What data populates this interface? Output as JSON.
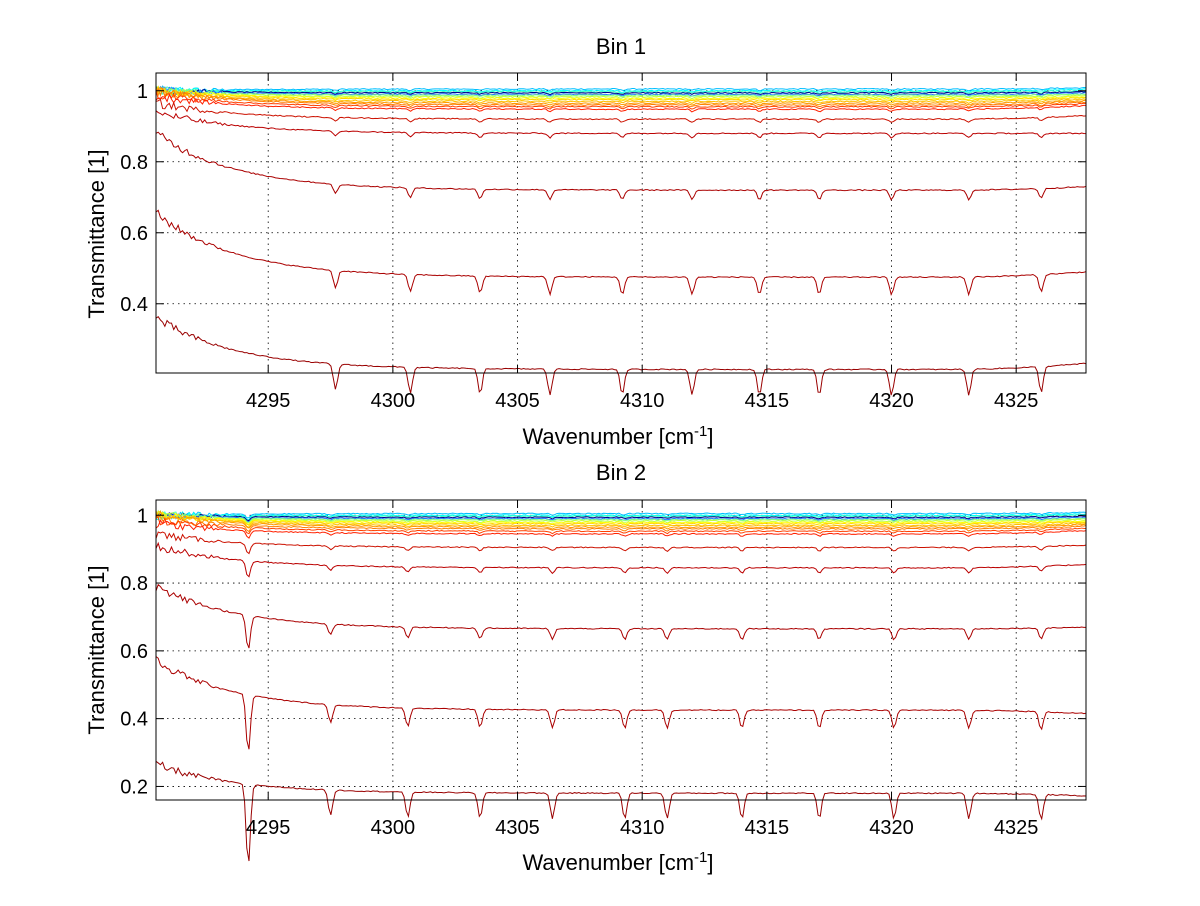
{
  "chart_data": [
    {
      "type": "line",
      "title": "Bin 1",
      "xlabel": "Wavenumber [cm",
      "xlabel_sup": "-1",
      "xlabel_end": "]",
      "ylabel": "Transmittance [1]",
      "xlim": [
        4290.5,
        4327.8
      ],
      "ylim": [
        0.205,
        1.05
      ],
      "xticks": [
        4295,
        4300,
        4305,
        4310,
        4315,
        4320,
        4325
      ],
      "yticks": [
        0.4,
        0.6,
        0.8,
        1
      ],
      "grid": true,
      "absorption_lines": [
        4297.7,
        4300.7,
        4303.5,
        4306.3,
        4309.2,
        4312.0,
        4314.7,
        4317.1,
        4320.0,
        4323.1,
        4326.0
      ],
      "series_baselines": [
        1.005,
        1.0,
        0.997,
        0.994,
        0.99,
        0.987,
        0.983,
        0.979,
        0.975,
        0.97,
        0.965,
        0.96,
        0.955,
        0.948,
        0.92,
        0.88,
        0.72,
        0.475,
        0.215
      ],
      "series_start": [
        1.0,
        1.0,
        1.0,
        1.0,
        1.0,
        1.0,
        1.0,
        1.0,
        1.0,
        1.0,
        1.0,
        1.0,
        0.99,
        0.985,
        0.965,
        0.94,
        0.88,
        0.655,
        0.36
      ],
      "series_end": [
        1.008,
        1.004,
        1.0,
        0.997,
        0.994,
        0.99,
        0.987,
        0.983,
        0.98,
        0.976,
        0.972,
        0.968,
        0.964,
        0.958,
        0.93,
        0.88,
        0.73,
        0.49,
        0.232
      ],
      "series_colors": [
        "#00bfff",
        "#00ffff",
        "#40ffbf",
        "#00008b",
        "#1f77ff",
        "#80ff80",
        "#bfff40",
        "#ffff00",
        "#ffd700",
        "#ffbf00",
        "#ff9900",
        "#ff7f00",
        "#ff4000",
        "#ff2000",
        "#cc1100",
        "#bb0000",
        "#aa0000",
        "#aa0000",
        "#990000"
      ]
    },
    {
      "type": "line",
      "title": "Bin 2",
      "xlabel": "Wavenumber [cm",
      "xlabel_sup": "-1",
      "xlabel_end": "]",
      "ylabel": "Transmittance [1]",
      "xlim": [
        4290.5,
        4327.8
      ],
      "ylim": [
        0.16,
        1.045
      ],
      "xticks": [
        4295,
        4300,
        4305,
        4310,
        4315,
        4320,
        4325
      ],
      "yticks": [
        0.2,
        0.4,
        0.6,
        0.8,
        1
      ],
      "grid": true,
      "absorption_lines": [
        4294.2,
        4297.5,
        4300.6,
        4303.5,
        4306.4,
        4309.3,
        4311.0,
        4314.0,
        4317.1,
        4320.1,
        4323.1,
        4326.0
      ],
      "series_baselines": [
        1.005,
        1.0,
        0.997,
        0.994,
        0.99,
        0.987,
        0.983,
        0.979,
        0.975,
        0.97,
        0.965,
        0.96,
        0.953,
        0.945,
        0.905,
        0.845,
        0.665,
        0.425,
        0.18
      ],
      "series_start": [
        1.0,
        1.0,
        1.0,
        1.0,
        1.0,
        1.0,
        1.0,
        1.0,
        1.0,
        1.0,
        1.0,
        0.99,
        0.985,
        0.975,
        0.945,
        0.91,
        0.79,
        0.57,
        0.265
      ],
      "series_end": [
        1.008,
        1.004,
        1.0,
        0.997,
        0.994,
        0.99,
        0.987,
        0.983,
        0.98,
        0.976,
        0.972,
        0.968,
        0.962,
        0.955,
        0.912,
        0.855,
        0.67,
        0.415,
        0.172
      ],
      "series_colors": [
        "#00bfff",
        "#00ffff",
        "#40ffbf",
        "#00008b",
        "#1f77ff",
        "#80ff80",
        "#bfff40",
        "#ffff00",
        "#ffd700",
        "#ffbf00",
        "#ff9900",
        "#ff7f00",
        "#ff4000",
        "#ff2000",
        "#cc1100",
        "#bb0000",
        "#aa0000",
        "#aa0000",
        "#990000"
      ]
    }
  ]
}
